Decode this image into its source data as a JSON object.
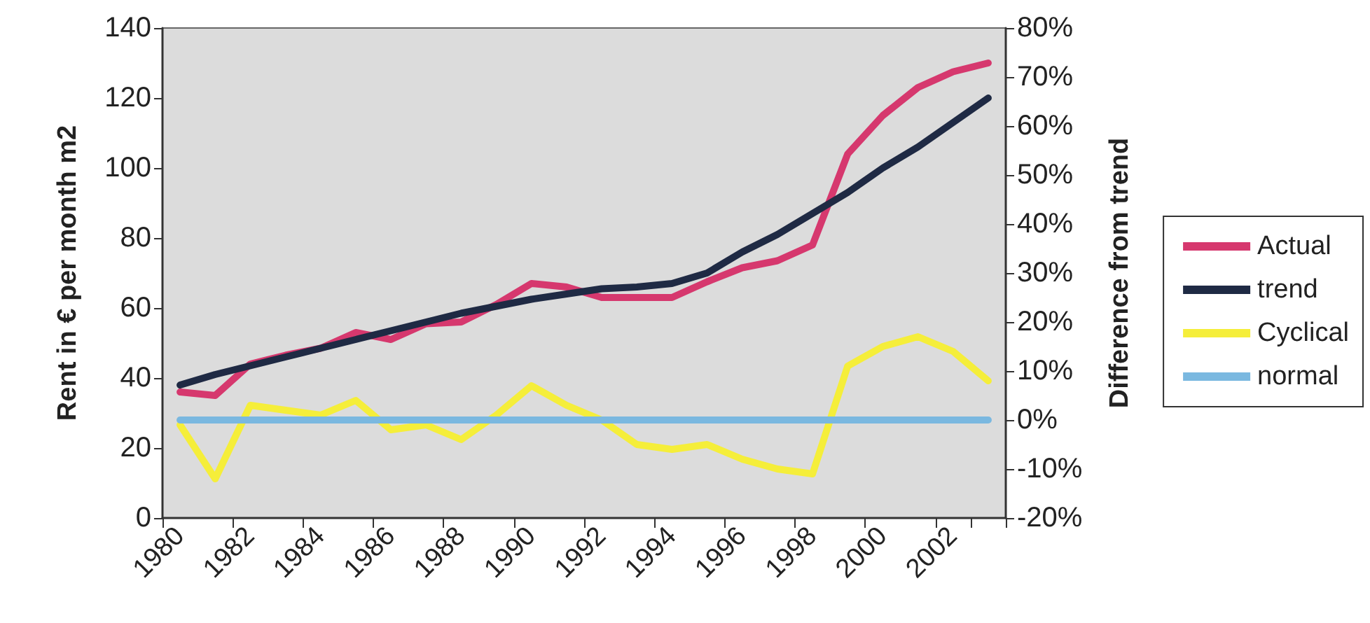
{
  "chart_data": {
    "type": "line",
    "ylabel": "Rent in € per month m2",
    "y2label": "Difference from trend",
    "categories": [
      "1980",
      null,
      "1982",
      null,
      "1984",
      null,
      "1986",
      null,
      "1988",
      null,
      "1990",
      null,
      "1992",
      null,
      "1994",
      null,
      "1996",
      null,
      "1998",
      null,
      "2000",
      null,
      "2002",
      null
    ],
    "series": [
      {
        "name": "Actual",
        "color": "#d6386e",
        "values": [
          36,
          35,
          44,
          46.5,
          48.5,
          53,
          51,
          55.5,
          56,
          61,
          67,
          66,
          63,
          63,
          63,
          67.5,
          71.5,
          73.5,
          78,
          104,
          115,
          123,
          127.5,
          130
        ]
      },
      {
        "name": "trend",
        "color": "#1f2a44",
        "values": [
          38,
          41,
          43.5,
          46,
          48.5,
          51,
          53.5,
          56,
          58.5,
          60.5,
          62.5,
          64,
          65.5,
          66,
          67,
          70,
          76,
          81,
          87,
          93,
          100,
          106,
          113,
          120
        ]
      },
      {
        "name": "Cyclical",
        "color": "#f5ee3a",
        "axis": "y2",
        "values": [
          -1,
          -12,
          3,
          2,
          1,
          4,
          -2,
          -1,
          -4,
          1,
          7,
          3,
          0,
          -5,
          -6,
          -5,
          -8,
          -10,
          -11,
          11,
          15,
          17,
          14,
          8
        ]
      },
      {
        "name": "normal",
        "color": "#7ab8e0",
        "axis": "y2",
        "values": [
          0,
          0,
          0,
          0,
          0,
          0,
          0,
          0,
          0,
          0,
          0,
          0,
          0,
          0,
          0,
          0,
          0,
          0,
          0,
          0,
          0,
          0,
          0,
          0
        ]
      }
    ],
    "ylim": [
      0,
      140
    ],
    "yticks": [
      0,
      20,
      40,
      60,
      80,
      100,
      120,
      140
    ],
    "y2lim": [
      -20,
      80
    ],
    "y2ticks": [
      {
        "value": -20,
        "label": "-20%"
      },
      {
        "value": -10,
        "label": "-10%"
      },
      {
        "value": 0,
        "label": "0%"
      },
      {
        "value": 10,
        "label": "10%"
      },
      {
        "value": 20,
        "label": "20%"
      },
      {
        "value": 30,
        "label": "30%"
      },
      {
        "value": 40,
        "label": "40%"
      },
      {
        "value": 50,
        "label": "50%"
      },
      {
        "value": 60,
        "label": "60%"
      },
      {
        "value": 70,
        "label": "70%"
      },
      {
        "value": 80,
        "label": "80%"
      }
    ],
    "grid": false,
    "legend": "right",
    "marker": "none",
    "line_style": "solid"
  }
}
